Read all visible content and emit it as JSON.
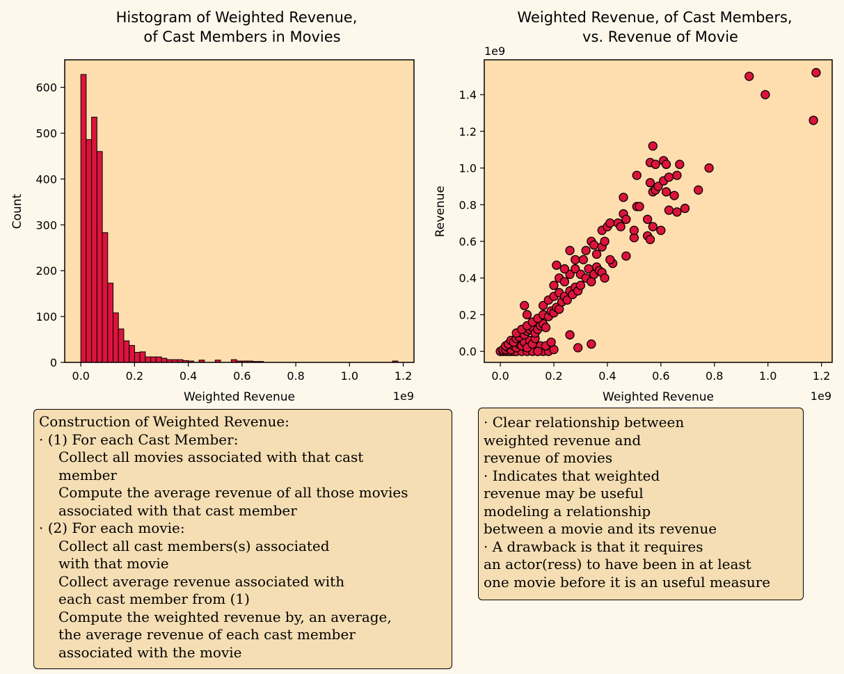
{
  "style": {
    "page_bg": "#fef8ec",
    "axes_bg": "#fedeae",
    "marker_color": "#dc143c",
    "edge_color": "#000000",
    "note_bg": "#f5deb3"
  },
  "chart_data": [
    {
      "type": "bar",
      "title_line1": "Histogram of Weighted Revenue,",
      "title_line2": "of Cast Members in Movies",
      "xlabel": "Weighted Revenue",
      "ylabel": "Count",
      "x_offset_label": "1e9",
      "xlim": [
        -0.06,
        1.24
      ],
      "ylim": [
        0,
        660
      ],
      "xticks": [
        0.0,
        0.2,
        0.4,
        0.6,
        0.8,
        1.0,
        1.2
      ],
      "xtick_labels": [
        "0.0",
        "0.2",
        "0.4",
        "0.6",
        "0.8",
        "1.0",
        "1.2"
      ],
      "yticks": [
        0,
        100,
        200,
        300,
        400,
        500,
        600
      ],
      "ytick_labels": [
        "0",
        "100",
        "200",
        "300",
        "400",
        "500",
        "600"
      ],
      "bin_width": 0.02,
      "bin_starts": [
        0.0,
        0.02,
        0.04,
        0.06,
        0.08,
        0.1,
        0.12,
        0.14,
        0.16,
        0.18,
        0.2,
        0.22,
        0.24,
        0.26,
        0.28,
        0.3,
        0.32,
        0.34,
        0.36,
        0.38,
        0.4,
        0.44,
        0.5,
        0.56,
        0.58,
        0.6,
        0.62,
        0.64,
        0.66,
        1.16
      ],
      "values": [
        628,
        486,
        535,
        460,
        283,
        173,
        108,
        73,
        47,
        37,
        22,
        23,
        12,
        12,
        12,
        9,
        6,
        6,
        6,
        4,
        3,
        5,
        5,
        6,
        3,
        3,
        3,
        2,
        2,
        3
      ]
    },
    {
      "type": "scatter",
      "title_line1": "Weighted Revenue, of Cast Members,",
      "title_line2": "vs. Revenue of Movie",
      "xlabel": "Weighted Revenue",
      "ylabel": "Revenue",
      "x_offset_label": "1e9",
      "y_offset_label": "1e9",
      "xlim": [
        -0.06,
        1.24
      ],
      "ylim": [
        -0.06,
        1.59
      ],
      "xticks": [
        0.0,
        0.2,
        0.4,
        0.6,
        0.8,
        1.0,
        1.2
      ],
      "xtick_labels": [
        "0.0",
        "0.2",
        "0.4",
        "0.6",
        "0.8",
        "1.0",
        "1.2"
      ],
      "yticks": [
        0.0,
        0.2,
        0.4,
        0.6,
        0.8,
        1.0,
        1.2,
        1.4
      ],
      "ytick_labels": [
        "0.0",
        "0.2",
        "0.4",
        "0.6",
        "0.8",
        "1.0",
        "1.2",
        "1.4"
      ],
      "points": [
        [
          0.0,
          0.0
        ],
        [
          0.01,
          0.0
        ],
        [
          0.02,
          0.0
        ],
        [
          0.03,
          0.0
        ],
        [
          0.04,
          0.0
        ],
        [
          0.05,
          0.0
        ],
        [
          0.06,
          0.0
        ],
        [
          0.08,
          0.0
        ],
        [
          0.1,
          0.0
        ],
        [
          0.12,
          0.0
        ],
        [
          0.14,
          0.0
        ],
        [
          0.16,
          0.0
        ],
        [
          0.18,
          0.0
        ],
        [
          0.2,
          0.01
        ],
        [
          0.01,
          0.01
        ],
        [
          0.02,
          0.01
        ],
        [
          0.03,
          0.02
        ],
        [
          0.04,
          0.01
        ],
        [
          0.05,
          0.03
        ],
        [
          0.06,
          0.02
        ],
        [
          0.07,
          0.04
        ],
        [
          0.08,
          0.03
        ],
        [
          0.09,
          0.05
        ],
        [
          0.1,
          0.02
        ],
        [
          0.11,
          0.06
        ],
        [
          0.12,
          0.04
        ],
        [
          0.13,
          0.07
        ],
        [
          0.15,
          0.03
        ],
        [
          0.02,
          0.03
        ],
        [
          0.03,
          0.04
        ],
        [
          0.04,
          0.06
        ],
        [
          0.05,
          0.05
        ],
        [
          0.06,
          0.07
        ],
        [
          0.07,
          0.08
        ],
        [
          0.08,
          0.1
        ],
        [
          0.09,
          0.09
        ],
        [
          0.1,
          0.11
        ],
        [
          0.11,
          0.12
        ],
        [
          0.12,
          0.13
        ],
        [
          0.13,
          0.1
        ],
        [
          0.14,
          0.12
        ],
        [
          0.15,
          0.14
        ],
        [
          0.16,
          0.15
        ],
        [
          0.17,
          0.13
        ],
        [
          0.06,
          0.1
        ],
        [
          0.08,
          0.12
        ],
        [
          0.1,
          0.14
        ],
        [
          0.12,
          0.16
        ],
        [
          0.14,
          0.18
        ],
        [
          0.16,
          0.2
        ],
        [
          0.18,
          0.19
        ],
        [
          0.19,
          0.22
        ],
        [
          0.2,
          0.21
        ],
        [
          0.21,
          0.24
        ],
        [
          0.22,
          0.23
        ],
        [
          0.09,
          0.25
        ],
        [
          0.1,
          0.2
        ],
        [
          0.16,
          0.25
        ],
        [
          0.18,
          0.28
        ],
        [
          0.2,
          0.3
        ],
        [
          0.22,
          0.32
        ],
        [
          0.23,
          0.27
        ],
        [
          0.24,
          0.3
        ],
        [
          0.25,
          0.28
        ],
        [
          0.26,
          0.33
        ],
        [
          0.27,
          0.31
        ],
        [
          0.28,
          0.35
        ],
        [
          0.29,
          0.33
        ],
        [
          0.3,
          0.36
        ],
        [
          0.2,
          0.36
        ],
        [
          0.22,
          0.4
        ],
        [
          0.24,
          0.38
        ],
        [
          0.26,
          0.42
        ],
        [
          0.28,
          0.45
        ],
        [
          0.3,
          0.42
        ],
        [
          0.32,
          0.4
        ],
        [
          0.33,
          0.45
        ],
        [
          0.34,
          0.38
        ],
        [
          0.35,
          0.42
        ],
        [
          0.36,
          0.46
        ],
        [
          0.37,
          0.44
        ],
        [
          0.38,
          0.43
        ],
        [
          0.39,
          0.4
        ],
        [
          0.21,
          0.47
        ],
        [
          0.24,
          0.45
        ],
        [
          0.26,
          0.55
        ],
        [
          0.28,
          0.5
        ],
        [
          0.31,
          0.5
        ],
        [
          0.32,
          0.55
        ],
        [
          0.34,
          0.6
        ],
        [
          0.35,
          0.58
        ],
        [
          0.36,
          0.53
        ],
        [
          0.38,
          0.57
        ],
        [
          0.39,
          0.6
        ],
        [
          0.38,
          0.66
        ],
        [
          0.4,
          0.68
        ],
        [
          0.41,
          0.7
        ],
        [
          0.42,
          0.48
        ],
        [
          0.41,
          0.5
        ],
        [
          0.44,
          0.7
        ],
        [
          0.45,
          0.68
        ],
        [
          0.46,
          0.75
        ],
        [
          0.47,
          0.72
        ],
        [
          0.46,
          0.84
        ],
        [
          0.47,
          0.52
        ],
        [
          0.5,
          0.62
        ],
        [
          0.5,
          0.66
        ],
        [
          0.51,
          0.79
        ],
        [
          0.52,
          0.79
        ],
        [
          0.55,
          0.63
        ],
        [
          0.56,
          0.61
        ],
        [
          0.55,
          0.72
        ],
        [
          0.57,
          0.68
        ],
        [
          0.6,
          0.66
        ],
        [
          0.51,
          0.96
        ],
        [
          0.56,
          1.03
        ],
        [
          0.57,
          1.12
        ],
        [
          0.58,
          1.02
        ],
        [
          0.56,
          0.92
        ],
        [
          0.57,
          0.87
        ],
        [
          0.58,
          0.88
        ],
        [
          0.59,
          0.9
        ],
        [
          0.61,
          0.93
        ],
        [
          0.61,
          1.04
        ],
        [
          0.62,
          1.02
        ],
        [
          0.63,
          0.95
        ],
        [
          0.62,
          0.87
        ],
        [
          0.63,
          0.77
        ],
        [
          0.65,
          0.85
        ],
        [
          0.66,
          0.76
        ],
        [
          0.66,
          0.96
        ],
        [
          0.67,
          1.02
        ],
        [
          0.69,
          0.78
        ],
        [
          0.74,
          0.88
        ],
        [
          0.78,
          1.0
        ],
        [
          0.93,
          1.5
        ],
        [
          0.99,
          1.4
        ],
        [
          1.17,
          1.26
        ],
        [
          1.18,
          1.52
        ],
        [
          0.26,
          0.09
        ],
        [
          0.29,
          0.02
        ],
        [
          0.34,
          0.04
        ],
        [
          0.14,
          0.0
        ],
        [
          0.17,
          0.03
        ],
        [
          0.19,
          0.05
        ]
      ]
    }
  ],
  "notes": {
    "left": {
      "heading": "Construction of Weighted Revenue:",
      "lines": [
        {
          "text": "· (1) For each Cast Member:",
          "indent": false
        },
        {
          "text": "Collect all movies associated with that cast",
          "indent": true
        },
        {
          "text": "member",
          "indent": true
        },
        {
          "text": "Compute the average revenue of all those movies",
          "indent": true
        },
        {
          "text": "associated with that cast member",
          "indent": true
        },
        {
          "text": "· (2) For each movie:",
          "indent": false
        },
        {
          "text": "Collect all cast members(s) associated",
          "indent": true
        },
        {
          "text": "with that movie",
          "indent": true
        },
        {
          "text": "Collect average revenue associated with",
          "indent": true
        },
        {
          "text": "each cast member from (1)",
          "indent": true
        },
        {
          "text": "Compute the weighted revenue by, an average,",
          "indent": true
        },
        {
          "text": "the average revenue of each cast member",
          "indent": true
        },
        {
          "text": "associated with the movie",
          "indent": true
        }
      ]
    },
    "right": {
      "lines": [
        {
          "text": "· Clear relationship between",
          "indent": false
        },
        {
          "text": "weighted revenue and",
          "indent": false
        },
        {
          "text": "revenue of movies",
          "indent": false
        },
        {
          "text": "· Indicates that weighted",
          "indent": false
        },
        {
          "text": "revenue may be useful",
          "indent": false
        },
        {
          "text": "modeling a relationship",
          "indent": false
        },
        {
          "text": "between a movie and its revenue",
          "indent": false
        },
        {
          "text": "· A drawback is that it requires",
          "indent": false
        },
        {
          "text": "an actor(ress) to have been in at least",
          "indent": false
        },
        {
          "text": "one movie before it is an useful measure",
          "indent": false
        }
      ]
    }
  }
}
